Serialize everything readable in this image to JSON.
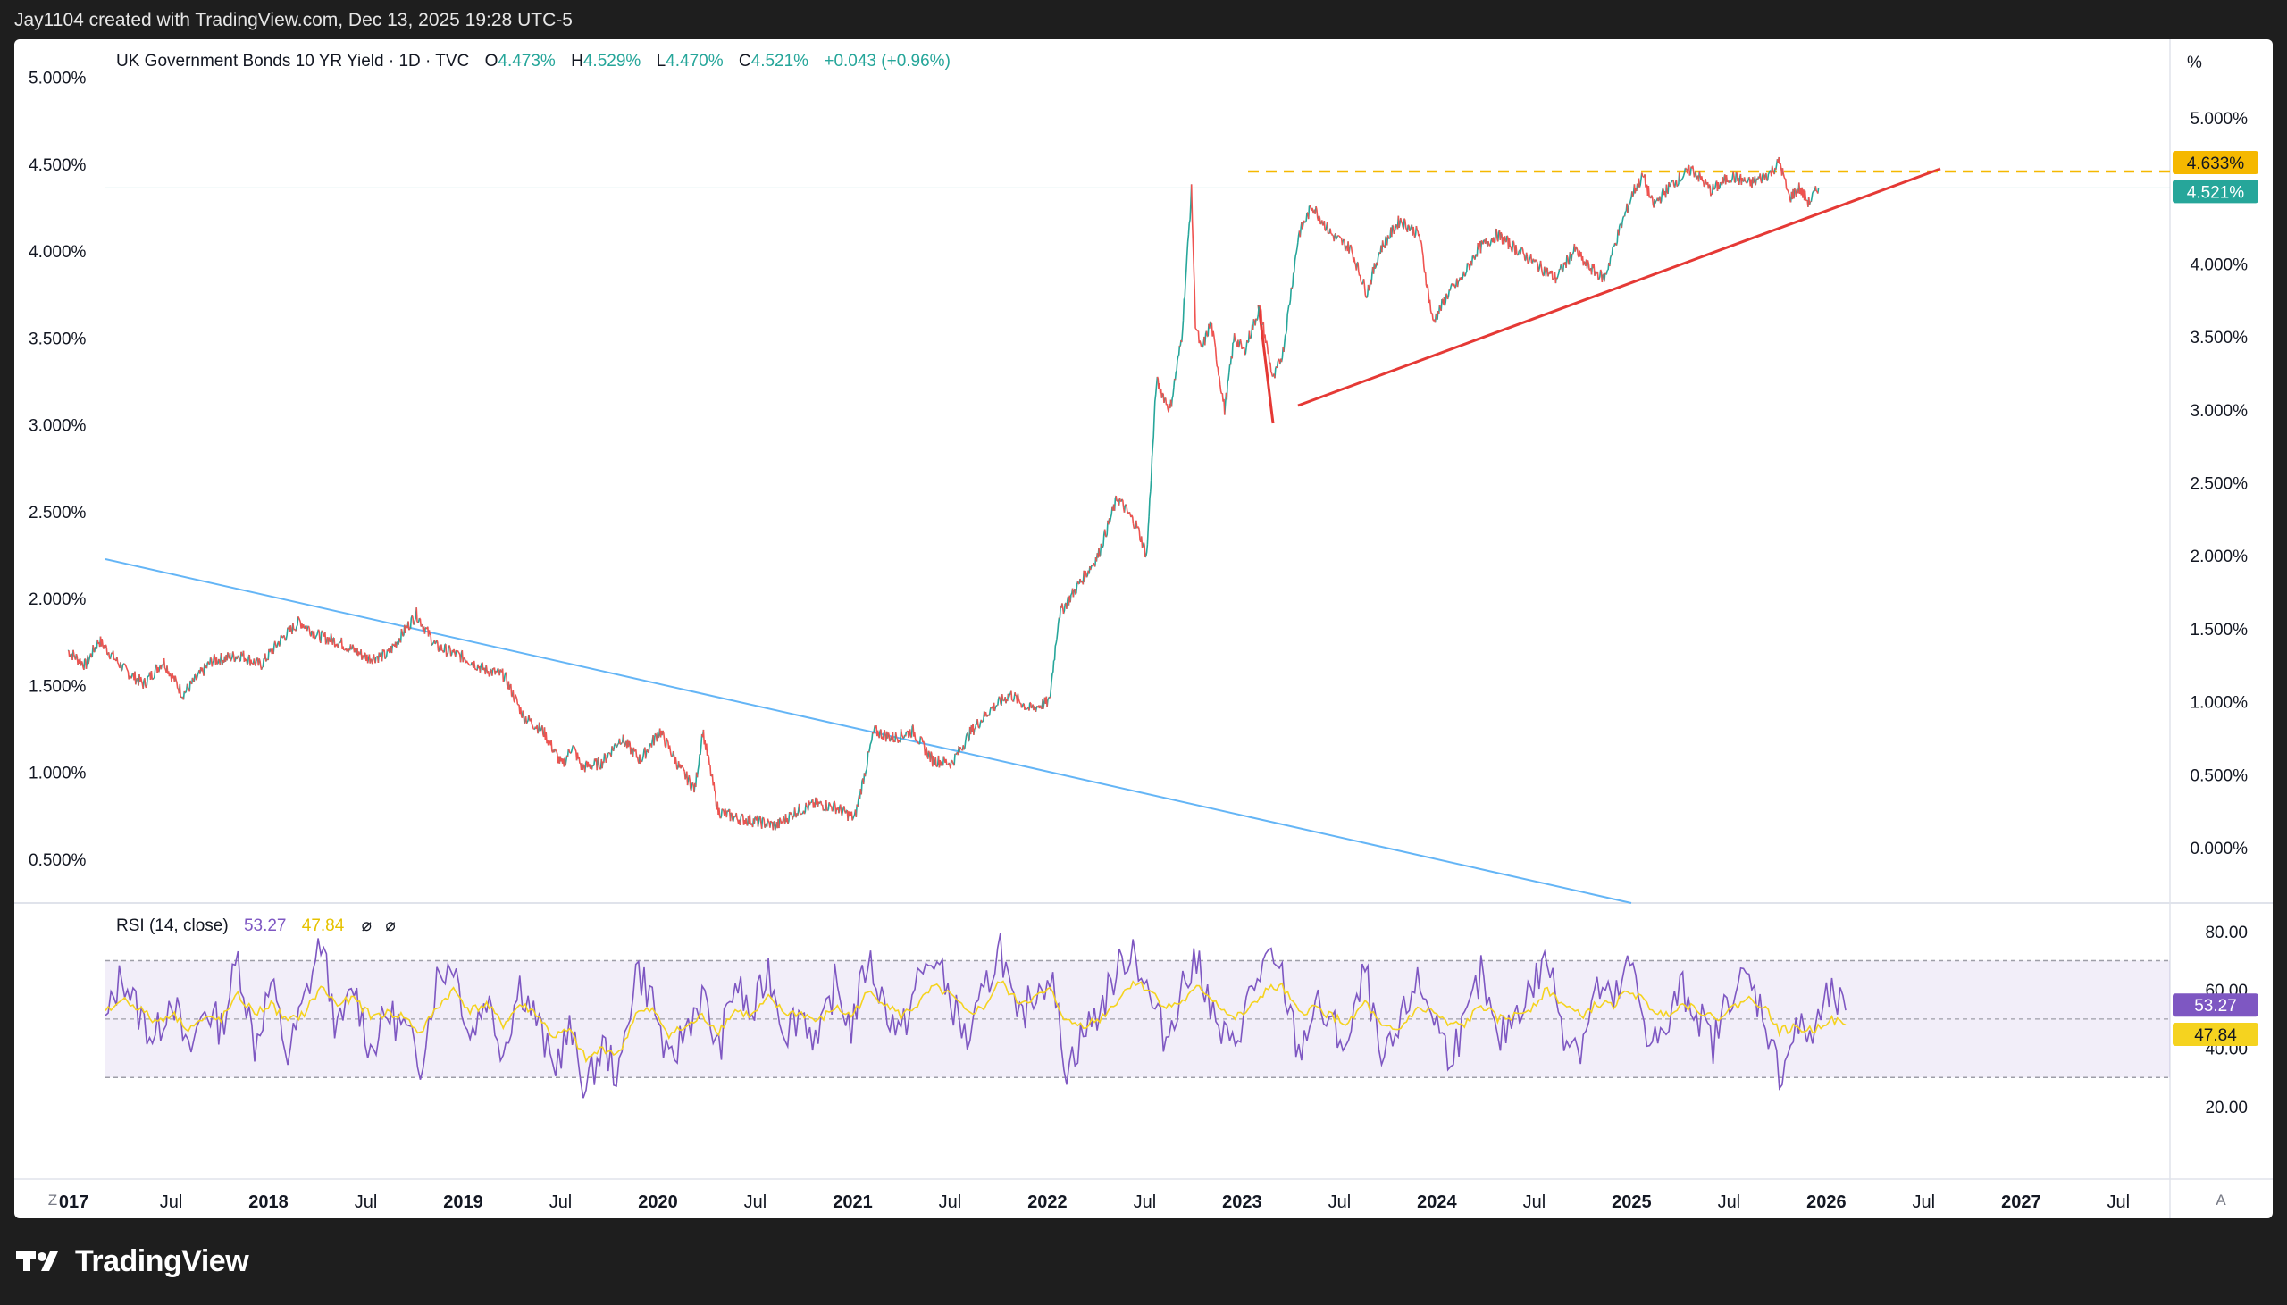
{
  "header": {
    "attribution": "Jay1104 created with TradingView.com, Dec 13, 2025 19:28 UTC-5"
  },
  "legend": {
    "symbol": "UK Government Bonds 10 YR Yield · 1D · TVC",
    "o_label": "O",
    "o_value": "4.473%",
    "h_label": "H",
    "h_value": "4.529%",
    "l_label": "L",
    "l_value": "4.470%",
    "c_label": "C",
    "c_value": "4.521%",
    "change": "+0.043 (+0.96%)"
  },
  "rsi_legend": {
    "label": "RSI (14, close)",
    "rsi_value": "53.27",
    "ma_value": "47.84",
    "icon_a": "⌀",
    "icon_b": "⌀"
  },
  "right_axis_unit": "%",
  "badges": {
    "level": "4.633%",
    "price": "4.521%",
    "rsi": "53.27",
    "rsi_ma": "47.84"
  },
  "corner_left": "Z",
  "corner_right": "A",
  "brand": "TradingView",
  "colors": {
    "up": "#26a69a",
    "down": "#ef5350",
    "trend_red": "#e53935",
    "trend_blue": "#64b5f6",
    "level": "#f5b800",
    "rsi": "#7e57c2",
    "rsi_ma": "#f5d31f",
    "price_badge": "#26a69a"
  },
  "chart_data": [
    {
      "type": "line",
      "title": "UK Government Bonds 10 YR Yield",
      "x_tick_labels": [
        "017",
        "Jul",
        "2018",
        "Jul",
        "2019",
        "Jul",
        "2020",
        "Jul",
        "2021",
        "Jul",
        "2022",
        "Jul",
        "2023",
        "Jul",
        "2024",
        "Jul",
        "2025",
        "Jul",
        "2026",
        "Jul",
        "2027",
        "Jul"
      ],
      "left_tick_labels": [
        "5.000%",
        "4.500%",
        "4.000%",
        "3.500%",
        "3.000%",
        "2.500%",
        "2.000%",
        "1.500%",
        "1.000%",
        "0.500%"
      ],
      "right_tick_labels": [
        "5.000%",
        "4.500%",
        "4.000%",
        "3.500%",
        "3.000%",
        "2.500%",
        "2.000%",
        "1.500%",
        "1.000%",
        "0.500%",
        "0.000%"
      ],
      "ylim": [
        0.0,
        5.0
      ],
      "series": [
        {
          "x": [
            2016.96,
            2017.05,
            2017.12,
            2017.25,
            2017.35,
            2017.45,
            2017.55,
            2017.7,
            2017.85,
            2017.95,
            2018.05,
            2018.15,
            2018.25,
            2018.35,
            2018.5,
            2018.6,
            2018.75,
            2018.85,
            2019.0,
            2019.1,
            2019.2,
            2019.3,
            2019.4,
            2019.5,
            2019.55,
            2019.6,
            2019.7,
            2019.8,
            2019.9,
            2020.0,
            2020.1,
            2020.18,
            2020.22,
            2020.3,
            2020.4,
            2020.5,
            2020.6,
            2020.7,
            2020.8,
            2020.9,
            2021.0,
            2021.1,
            2021.2,
            2021.3,
            2021.4,
            2021.5,
            2021.6,
            2021.7,
            2021.8,
            2021.9,
            2022.0,
            2022.05,
            2022.15,
            2022.25,
            2022.35,
            2022.45,
            2022.5,
            2022.55,
            2022.62,
            2022.68,
            2022.73,
            2022.75,
            2022.78,
            2022.83,
            2022.9,
            2022.95,
            2023.0,
            2023.08,
            2023.15,
            2023.2,
            2023.28,
            2023.35,
            2023.45,
            2023.55,
            2023.63,
            2023.7,
            2023.8,
            2023.9,
            2023.97,
            2024.05,
            2024.12,
            2024.2,
            2024.3,
            2024.4,
            2024.5,
            2024.6,
            2024.7,
            2024.75,
            2024.85,
            2024.92,
            2025.0,
            2025.05,
            2025.1,
            2025.2,
            2025.3,
            2025.4,
            2025.5,
            2025.6,
            2025.7,
            2025.75,
            2025.8,
            2025.85,
            2025.9,
            2025.95
          ],
          "values": [
            1.35,
            1.25,
            1.42,
            1.22,
            1.12,
            1.28,
            1.05,
            1.28,
            1.32,
            1.25,
            1.42,
            1.55,
            1.45,
            1.41,
            1.3,
            1.32,
            1.6,
            1.38,
            1.3,
            1.22,
            1.18,
            0.9,
            0.8,
            0.56,
            0.7,
            0.55,
            0.58,
            0.75,
            0.6,
            0.8,
            0.55,
            0.4,
            0.8,
            0.25,
            0.2,
            0.18,
            0.15,
            0.25,
            0.3,
            0.28,
            0.2,
            0.8,
            0.75,
            0.8,
            0.6,
            0.58,
            0.8,
            0.95,
            1.05,
            0.95,
            1.0,
            1.6,
            1.8,
            2.0,
            2.4,
            2.2,
            2.0,
            3.2,
            3.0,
            3.5,
            4.5,
            3.6,
            3.4,
            3.6,
            3.0,
            3.5,
            3.4,
            3.7,
            3.2,
            3.4,
            4.2,
            4.4,
            4.2,
            4.1,
            3.8,
            4.1,
            4.3,
            4.2,
            3.6,
            3.8,
            3.9,
            4.1,
            4.2,
            4.1,
            4.0,
            3.9,
            4.1,
            4.0,
            3.9,
            4.2,
            4.5,
            4.6,
            4.4,
            4.55,
            4.65,
            4.5,
            4.6,
            4.55,
            4.62,
            4.7,
            4.45,
            4.52,
            4.42,
            4.52
          ]
        }
      ],
      "level_line": 4.633
    },
    {
      "type": "line",
      "title": "RSI (14, close)",
      "tick_labels": [
        "80.00",
        "60.00",
        "40.00",
        "20.00"
      ],
      "ylim": [
        10,
        90
      ],
      "band": [
        30,
        70
      ],
      "series": [
        {
          "name": "RSI",
          "values": [
            48,
            66,
            52,
            43,
            59,
            37,
            54,
            47,
            71,
            41,
            62,
            37,
            56,
            77,
            45,
            61,
            39,
            52,
            47,
            35,
            64,
            70,
            44,
            58,
            39,
            62,
            50,
            33,
            46,
            26,
            41,
            30,
            68,
            57,
            33,
            47,
            58,
            39,
            63,
            50,
            67,
            46,
            53,
            41,
            62,
            47,
            71,
            55,
            44,
            63,
            71,
            57,
            42,
            58,
            76,
            47,
            59,
            66,
            33,
            45,
            53,
            66,
            75,
            57,
            43,
            62,
            70,
            47,
            40,
            57,
            70,
            64,
            38,
            55,
            47,
            41,
            67,
            33,
            45,
            63,
            54,
            38,
            47,
            65,
            41,
            52,
            60,
            71,
            46,
            41,
            61,
            55,
            69,
            46,
            42,
            61,
            53,
            41,
            59,
            64,
            53,
            31,
            47,
            44,
            58,
            53
          ]
        },
        {
          "name": "MA",
          "values": [
            52,
            57,
            54,
            49,
            52,
            47,
            50,
            50,
            58,
            52,
            55,
            49,
            52,
            61,
            55,
            57,
            51,
            52,
            51,
            45,
            54,
            60,
            53,
            55,
            48,
            55,
            52,
            44,
            46,
            36,
            40,
            38,
            52,
            53,
            45,
            47,
            51,
            46,
            53,
            51,
            57,
            52,
            52,
            49,
            54,
            51,
            59,
            56,
            51,
            55,
            61,
            58,
            52,
            54,
            63,
            56,
            57,
            60,
            49,
            48,
            50,
            56,
            63,
            60,
            54,
            56,
            61,
            56,
            50,
            53,
            60,
            61,
            52,
            54,
            51,
            48,
            56,
            47,
            46,
            53,
            53,
            48,
            48,
            55,
            50,
            51,
            54,
            60,
            55,
            51,
            55,
            55,
            60,
            55,
            51,
            55,
            54,
            50,
            53,
            57,
            55,
            46,
            47,
            46,
            50,
            48
          ]
        }
      ]
    }
  ]
}
